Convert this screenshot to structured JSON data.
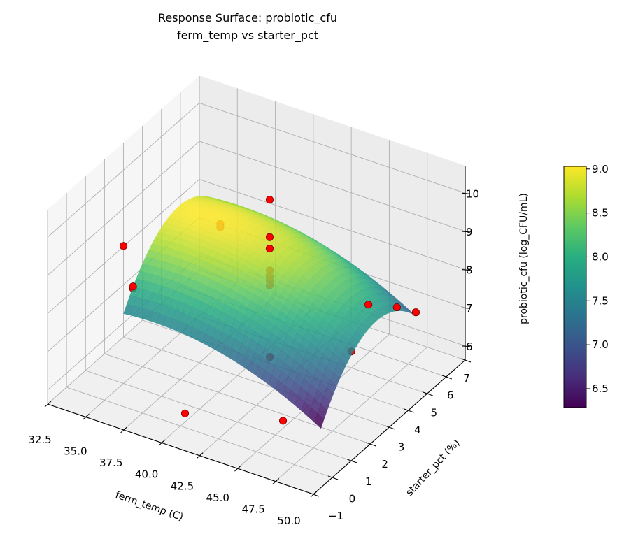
{
  "chart_data": {
    "type": "surface3d",
    "title": "Response Surface: probiotic_cfu",
    "subtitle": "ferm_temp vs starter_pct",
    "xlabel": "ferm_temp (C)",
    "ylabel": "starter_pct (%)",
    "zlabel": "probiotic_cfu (log_CFU/mL)",
    "xlim": [
      32.5,
      50.0
    ],
    "ylim": [
      -1,
      7
    ],
    "zlim": [
      5.63,
      10.72
    ],
    "xticks": [
      "32.5",
      "35.0",
      "37.5",
      "40.0",
      "42.5",
      "45.0",
      "47.5",
      "50.0"
    ],
    "yticks": [
      "−1",
      "0",
      "1",
      "2",
      "3",
      "4",
      "5",
      "6",
      "7"
    ],
    "zticks": [
      "6",
      "7",
      "8",
      "9",
      "10"
    ],
    "grid": true,
    "surface": {
      "colormap": "viridis",
      "x_range": [
        35,
        48
      ],
      "y_range": [
        1,
        6
      ],
      "center": [
        41.5,
        3.5
      ],
      "model": {
        "b0": 8.783,
        "bx": -0.0963,
        "by": 0.15,
        "bxx": -0.0107,
        "byy": -0.18,
        "bxy": 0
      }
    },
    "points": [
      {
        "x": 41.5,
        "y": 3.5,
        "z": 10.22
      },
      {
        "x": 41.5,
        "y": 3.5,
        "z": 9.24
      },
      {
        "x": 41.5,
        "y": 3.5,
        "z": 8.94
      },
      {
        "x": 41.5,
        "y": 3.5,
        "z": 8.37
      },
      {
        "x": 41.5,
        "y": 3.5,
        "z": 8.22
      },
      {
        "x": 41.5,
        "y": 3.5,
        "z": 8.1
      },
      {
        "x": 41.5,
        "y": 3.5,
        "z": 7.98
      },
      {
        "x": 41.5,
        "y": 3.5,
        "z": 6.1
      },
      {
        "x": 37,
        "y": 4.5,
        "z": 8.54
      },
      {
        "x": 37,
        "y": 4.5,
        "z": 8.45
      },
      {
        "x": 35,
        "y": 1,
        "z": 9.23
      },
      {
        "x": 35,
        "y": 1.5,
        "z": 7.95
      },
      {
        "x": 35,
        "y": 1.5,
        "z": 7.9
      },
      {
        "x": 48,
        "y": 3.5,
        "z": 8.35
      },
      {
        "x": 48,
        "y": 5,
        "z": 7.62
      },
      {
        "x": 48,
        "y": 6,
        "z": 7.05
      },
      {
        "x": 45,
        "y": 5,
        "z": 6.06
      },
      {
        "x": 40.3,
        "y": 0,
        "z": 6.0
      },
      {
        "x": 45.5,
        "y": 1,
        "z": 6.07
      }
    ],
    "point_color": "#ff0000",
    "colorbar": {
      "range": [
        6.285,
        9.03
      ],
      "ticks": [
        "6.5",
        "7.0",
        "7.5",
        "8.0",
        "8.5",
        "9.0"
      ],
      "tick_values": [
        6.5,
        7.0,
        7.5,
        8.0,
        8.5,
        9.0
      ]
    }
  }
}
